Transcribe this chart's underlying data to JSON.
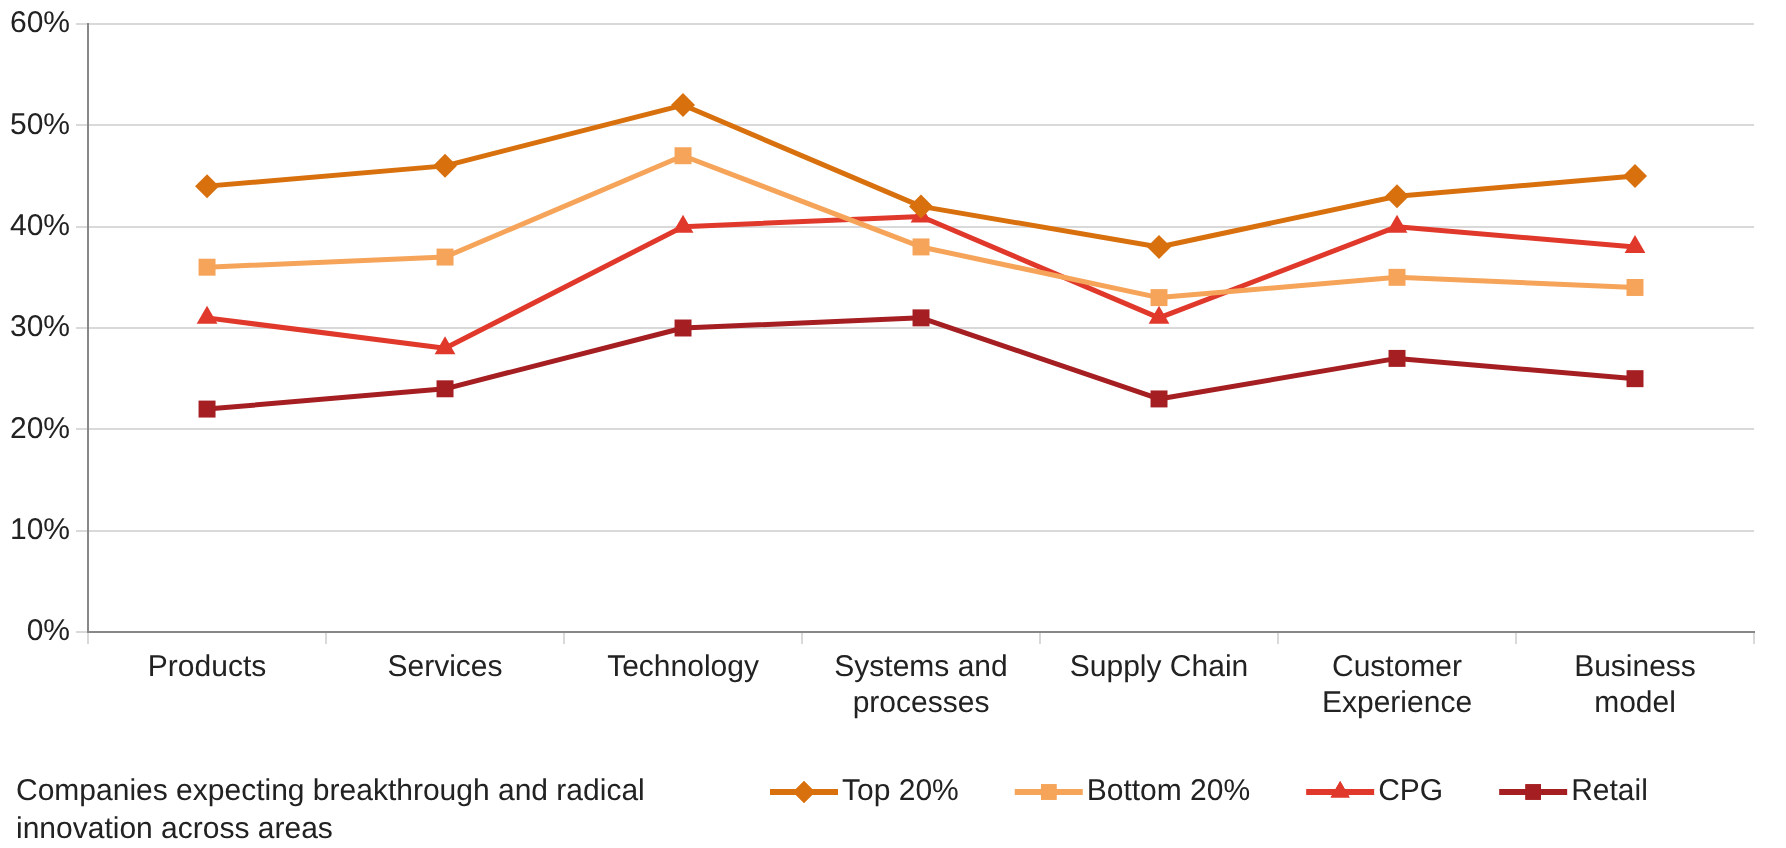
{
  "chart_data": {
    "type": "line",
    "categories": [
      "Products",
      "Services",
      "Technology",
      "Systems and processes",
      "Supply Chain",
      "Customer Experience",
      "Business model"
    ],
    "series": [
      {
        "name": "Top 20%",
        "color": "#d8700e",
        "marker": "diamond",
        "values": [
          44,
          46,
          52,
          42,
          38,
          43,
          45
        ]
      },
      {
        "name": "Bottom 20%",
        "color": "#f5a45a",
        "marker": "square",
        "values": [
          36,
          37,
          47,
          38,
          33,
          35,
          34
        ]
      },
      {
        "name": "CPG",
        "color": "#e0392b",
        "marker": "triangle",
        "values": [
          31,
          28,
          40,
          41,
          31,
          40,
          38
        ]
      },
      {
        "name": "Retail",
        "color": "#a51e22",
        "marker": "square",
        "values": [
          22,
          24,
          30,
          31,
          23,
          27,
          25
        ]
      }
    ],
    "ylim": [
      0,
      60
    ],
    "yticks": [
      {
        "value": 0,
        "label": "0%"
      },
      {
        "value": 10,
        "label": "10%"
      },
      {
        "value": 20,
        "label": "20%"
      },
      {
        "value": 30,
        "label": "30%"
      },
      {
        "value": 40,
        "label": "40%"
      },
      {
        "value": 50,
        "label": "50%"
      },
      {
        "value": 60,
        "label": "60%"
      }
    ],
    "grid": "y",
    "legend": "bottom",
    "legend_title": "Companies expecting breakthrough and radical innovation across areas",
    "line_style": "solid"
  }
}
